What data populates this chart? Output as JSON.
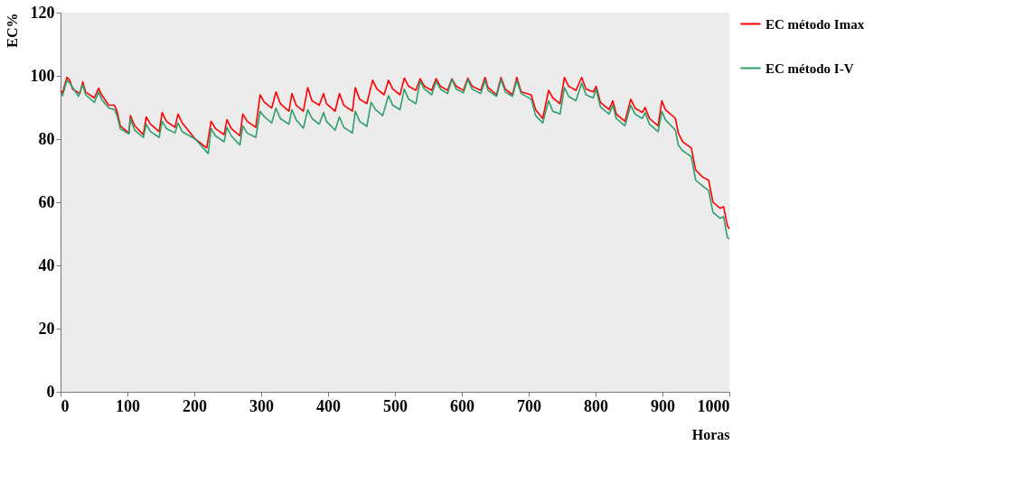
{
  "chart_data": {
    "type": "line",
    "xlabel": "Horas",
    "ylabel": "EC%",
    "xlim": [
      0,
      1000
    ],
    "ylim": [
      0,
      120
    ],
    "xticks": [
      0,
      100,
      200,
      300,
      400,
      500,
      600,
      700,
      800,
      900,
      1000
    ],
    "yticks": [
      0,
      20,
      40,
      60,
      80,
      100,
      120
    ],
    "grid": false,
    "legend": "right",
    "marker": "none",
    "line_style": "solid",
    "series": [
      {
        "name": "EC método Imax",
        "color": "#ff0000",
        "x": [
          0,
          3,
          9.5,
          13.8,
          18.1,
          29,
          33.2,
          37.5,
          50.5,
          57,
          61.3,
          72,
          80.7,
          85,
          89.3,
          102.2,
          104.4,
          110.8,
          123.8,
          128.1,
          134.6,
          147.5,
          151.8,
          158.3,
          171.2,
          175.5,
          182,
          201.4,
          218.6,
          225.1,
          231.6,
          244.5,
          248.8,
          255.3,
          268.2,
          272.5,
          279,
          292,
          298.4,
          304.9,
          315.7,
          322.1,
          328.6,
          341.5,
          345.9,
          352.3,
          363.1,
          369.6,
          376,
          386.8,
          393.3,
          397.6,
          410.5,
          417,
          423.5,
          436.4,
          440.7,
          447.2,
          458,
          466.6,
          473.1,
          483.8,
          490.3,
          496.8,
          507.6,
          514,
          520.5,
          531.3,
          537.7,
          544.2,
          555,
          561.5,
          568,
          578.7,
          585.2,
          591.6,
          602.4,
          608.9,
          615.4,
          628.3,
          634.8,
          639.1,
          652,
          658.5,
          665,
          675.8,
          682.2,
          688.7,
          703.8,
          710.3,
          721,
          729.7,
          736.1,
          746.9,
          753.4,
          759.8,
          770.6,
          779.2,
          785.7,
          796.5,
          800.8,
          807.2,
          820.2,
          825.8,
          831,
          843.9,
          852.6,
          859,
          869.8,
          874.1,
          880.6,
          893.5,
          899.1,
          904.3,
          919.4,
          923.7,
          930.2,
          943.1,
          949.6,
          960.4,
          969,
          975.5,
          986.2,
          991.4,
          997,
          1000
        ],
        "values": [
          95.3,
          94.6,
          99.5,
          98.6,
          95.8,
          94.4,
          98.1,
          94.9,
          93.0,
          96.1,
          94.0,
          90.7,
          90.7,
          88.4,
          84.2,
          81.9,
          87.4,
          84.2,
          81.4,
          87.0,
          84.7,
          82.3,
          88.4,
          85.6,
          83.7,
          87.9,
          85.1,
          80.0,
          77.2,
          85.6,
          83.3,
          81.4,
          86.1,
          83.3,
          81.0,
          87.9,
          85.6,
          83.7,
          94.0,
          91.6,
          89.8,
          94.9,
          91.2,
          88.8,
          94.4,
          90.7,
          88.8,
          96.3,
          92.1,
          90.7,
          94.4,
          91.2,
          88.8,
          94.4,
          90.7,
          88.8,
          96.3,
          92.6,
          91.2,
          98.6,
          95.8,
          94.0,
          98.6,
          95.8,
          94.0,
          99.3,
          96.7,
          95.4,
          99.1,
          96.7,
          95.4,
          99.1,
          96.7,
          95.4,
          99.1,
          96.7,
          95.4,
          99.3,
          96.7,
          95.4,
          99.5,
          96.3,
          94.0,
          99.5,
          95.8,
          94.0,
          99.5,
          94.9,
          94.0,
          89.3,
          86.5,
          95.4,
          93.0,
          91.2,
          99.5,
          96.7,
          95.4,
          99.5,
          95.8,
          94.9,
          96.7,
          91.6,
          89.3,
          92.1,
          87.9,
          85.6,
          92.6,
          89.8,
          88.4,
          90.0,
          86.5,
          84.2,
          92.1,
          89.3,
          86.5,
          81.9,
          79.1,
          77.2,
          70.2,
          67.9,
          67.0,
          60.0,
          58.1,
          58.6,
          52.6,
          51.6
        ]
      },
      {
        "name": "EC método I-V",
        "color": "#2e9e6a",
        "x": [
          0,
          3,
          9.5,
          13.8,
          26.8,
          33.2,
          37.5,
          50.5,
          57,
          61.3,
          72,
          80.7,
          85,
          89.3,
          102.2,
          104.4,
          110.8,
          123.8,
          128.1,
          134.6,
          147.5,
          151.8,
          158.3,
          171.2,
          175.5,
          182,
          201.4,
          220.8,
          225.1,
          231.6,
          244.5,
          248.8,
          255.3,
          268.2,
          272.5,
          279,
          292,
          298.4,
          304.9,
          315.7,
          322.1,
          328.6,
          341.5,
          345.9,
          352.3,
          363.1,
          369.6,
          376,
          386.8,
          393.3,
          397.6,
          410.5,
          417,
          423.5,
          436.4,
          440.7,
          447.2,
          458,
          464.4,
          470.9,
          481.7,
          490.3,
          496.8,
          507.6,
          514,
          520.5,
          531.3,
          537.7,
          544.2,
          555,
          561.5,
          568,
          578.7,
          585.2,
          591.6,
          602.4,
          608.9,
          615.4,
          628.3,
          634.8,
          639.1,
          652,
          658.5,
          665,
          675.8,
          682.2,
          688.7,
          703.8,
          710.3,
          721,
          729.7,
          736.1,
          746.9,
          753.4,
          759.8,
          770.6,
          779.2,
          785.7,
          796.5,
          800.8,
          807.2,
          820.2,
          825.8,
          831,
          843.9,
          852.6,
          859,
          869.8,
          874.1,
          880.6,
          893.5,
          899.1,
          904.3,
          919.4,
          923.7,
          930.2,
          943.1,
          949.6,
          960.4,
          969,
          975.5,
          986.2,
          991.4,
          997,
          1000
        ],
        "values": [
          94.4,
          93.7,
          98.6,
          97.7,
          93.5,
          97.2,
          94.0,
          91.6,
          94.9,
          92.6,
          89.8,
          89.3,
          87.0,
          83.3,
          81.6,
          86.5,
          82.8,
          80.5,
          84.7,
          82.3,
          80.5,
          85.6,
          83.3,
          81.9,
          85.1,
          82.3,
          80.0,
          75.4,
          83.3,
          81.0,
          79.1,
          83.7,
          81.0,
          78.1,
          84.2,
          81.9,
          80.5,
          88.8,
          87.0,
          85.1,
          89.8,
          86.5,
          84.7,
          89.3,
          86.1,
          83.4,
          89.3,
          86.5,
          84.7,
          88.4,
          85.6,
          82.8,
          87.0,
          83.7,
          81.9,
          88.8,
          85.6,
          84.0,
          91.6,
          89.3,
          87.4,
          93.7,
          90.7,
          89.3,
          95.8,
          92.6,
          91.2,
          98.3,
          95.8,
          94.0,
          98.3,
          95.8,
          94.4,
          98.9,
          95.8,
          94.6,
          98.9,
          95.8,
          94.4,
          98.6,
          95.4,
          93.5,
          98.9,
          94.9,
          93.5,
          98.6,
          94.4,
          92.6,
          87.4,
          85.1,
          92.1,
          88.8,
          87.9,
          96.3,
          93.5,
          92.1,
          97.7,
          94.0,
          93.0,
          95.8,
          90.2,
          87.9,
          90.7,
          86.5,
          84.2,
          90.7,
          87.9,
          86.5,
          88.4,
          84.7,
          82.3,
          88.8,
          86.1,
          82.8,
          78.1,
          76.3,
          74.4,
          67.0,
          65.1,
          63.7,
          56.8,
          54.9,
          55.4,
          48.9,
          48.4
        ]
      }
    ]
  }
}
